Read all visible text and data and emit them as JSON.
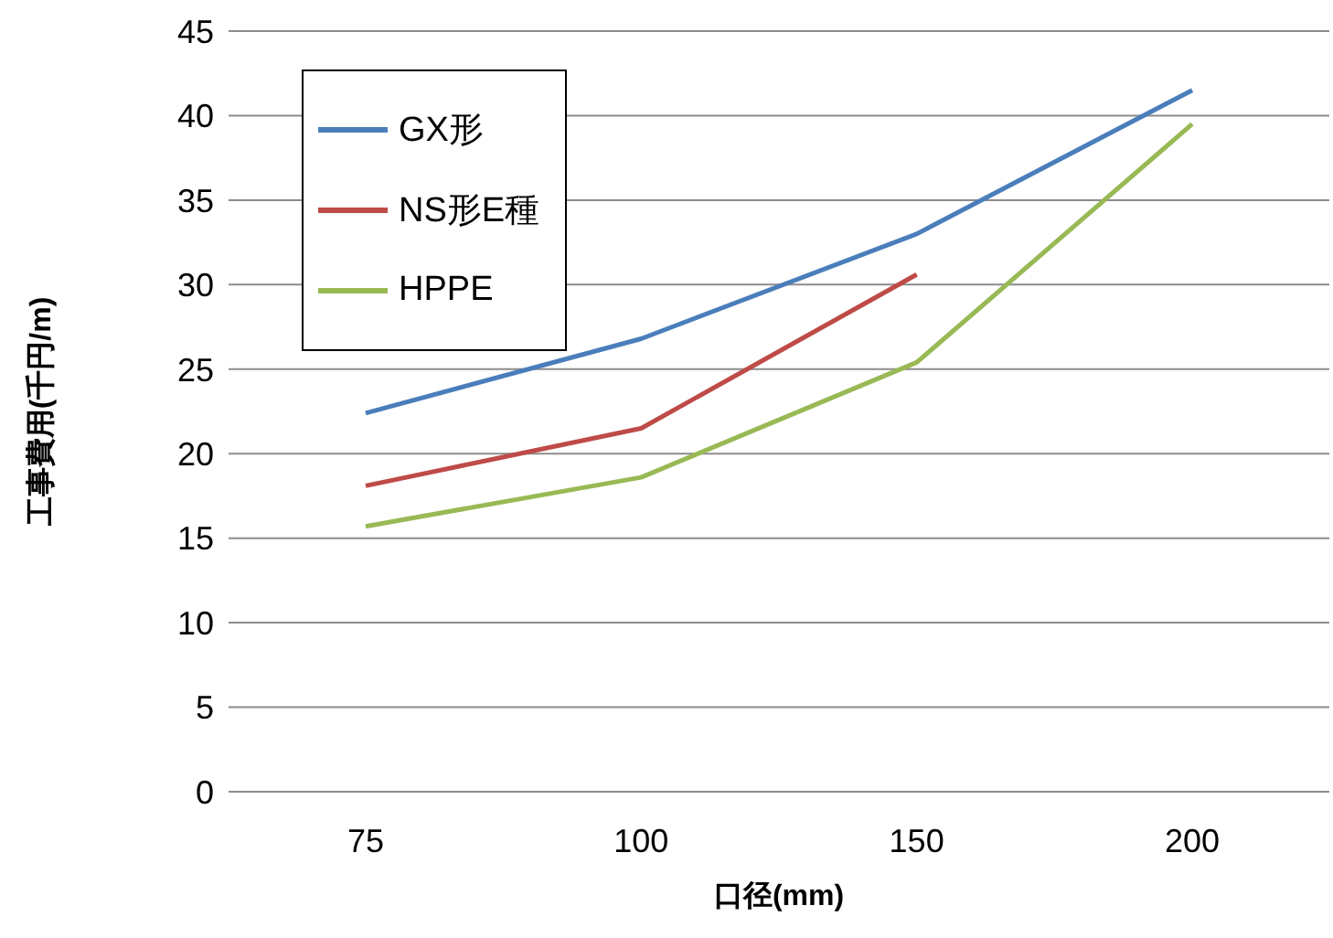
{
  "chart_data": {
    "type": "line",
    "xlabel": "口径(mm)",
    "ylabel": "工事費用(千円/m)",
    "categories": [
      "75",
      "100",
      "150",
      "200"
    ],
    "series": [
      {
        "name": "GX形",
        "color": "#4a7ebb",
        "values": [
          22.4,
          26.8,
          33.0,
          41.5
        ]
      },
      {
        "name": "NS形E種",
        "color": "#be4b48",
        "values": [
          18.1,
          21.5,
          30.6,
          null
        ]
      },
      {
        "name": "HPPE",
        "color": "#98b954",
        "values": [
          15.7,
          18.6,
          25.4,
          39.5
        ]
      }
    ],
    "ylim": [
      0,
      45
    ],
    "yticks": [
      0,
      5,
      10,
      15,
      20,
      25,
      30,
      35,
      40,
      45
    ],
    "grid": "y",
    "legend": "top left",
    "marker": "none",
    "line_style": "solid"
  }
}
